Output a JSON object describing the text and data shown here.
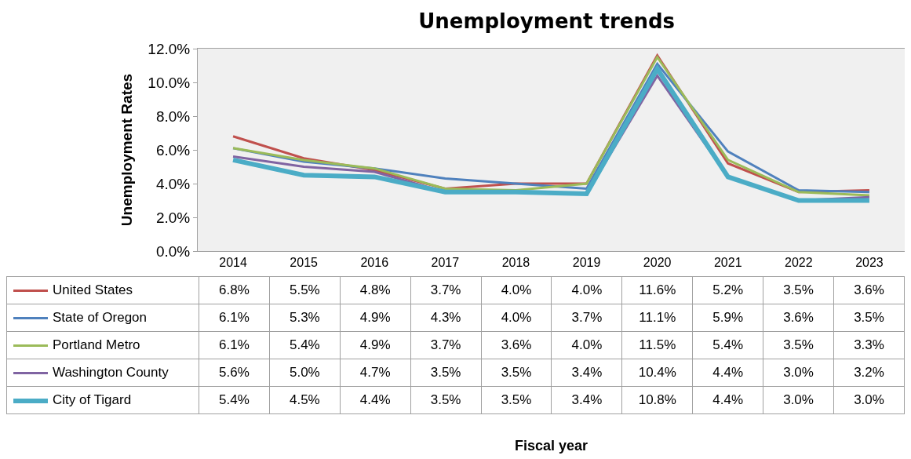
{
  "chart_data": {
    "type": "line",
    "title": "Unemployment trends",
    "annotations": [
      "Fiscal year"
    ],
    "ylabel": "Unemployment Rates",
    "categories": [
      "2014",
      "2015",
      "2016",
      "2017",
      "2018",
      "2019",
      "2020",
      "2021",
      "2022",
      "2023"
    ],
    "series": [
      {
        "name": "United States",
        "color": "#c0504d",
        "values": [
          6.8,
          5.5,
          4.8,
          3.7,
          4.0,
          4.0,
          11.6,
          5.2,
          3.5,
          3.6
        ],
        "value_labels": [
          "6.8%",
          "5.5%",
          "4.8%",
          "3.7%",
          "4.0%",
          "4.0%",
          "11.6%",
          "5.2%",
          "3.5%",
          "3.6%"
        ]
      },
      {
        "name": "State of Oregon",
        "color": "#4f81bd",
        "values": [
          6.1,
          5.3,
          4.9,
          4.3,
          4.0,
          3.7,
          11.1,
          5.9,
          3.6,
          3.5
        ],
        "value_labels": [
          "6.1%",
          "5.3%",
          "4.9%",
          "4.3%",
          "4.0%",
          "3.7%",
          "11.1%",
          "5.9%",
          "3.6%",
          "3.5%"
        ]
      },
      {
        "name": "Portland Metro",
        "color": "#9bbb59",
        "values": [
          6.1,
          5.4,
          4.9,
          3.7,
          3.6,
          4.0,
          11.5,
          5.4,
          3.5,
          3.3
        ],
        "value_labels": [
          "6.1%",
          "5.4%",
          "4.9%",
          "3.7%",
          "3.6%",
          "4.0%",
          "11.5%",
          "5.4%",
          "3.5%",
          "3.3%"
        ]
      },
      {
        "name": "Washington County",
        "color": "#8064a2",
        "values": [
          5.6,
          5.0,
          4.7,
          3.5,
          3.5,
          3.4,
          10.4,
          4.4,
          3.0,
          3.2
        ],
        "value_labels": [
          "5.6%",
          "5.0%",
          "4.7%",
          "3.5%",
          "3.5%",
          "3.4%",
          "10.4%",
          "4.4%",
          "3.0%",
          "3.2%"
        ]
      },
      {
        "name": "City of Tigard",
        "color": "#4bacc6",
        "values": [
          5.4,
          4.5,
          4.4,
          3.5,
          3.5,
          3.4,
          10.8,
          4.4,
          3.0,
          3.0
        ],
        "value_labels": [
          "5.4%",
          "4.5%",
          "4.4%",
          "3.5%",
          "3.5%",
          "3.4%",
          "10.8%",
          "4.4%",
          "3.0%",
          "3.0%"
        ]
      }
    ],
    "ylim": [
      0,
      12
    ],
    "yticks": [
      {
        "value": 0,
        "label": "0.0%"
      },
      {
        "value": 2,
        "label": "2.0%"
      },
      {
        "value": 4,
        "label": "4.0%"
      },
      {
        "value": 6,
        "label": "6.0%"
      },
      {
        "value": 8,
        "label": "8.0%"
      },
      {
        "value": 10,
        "label": "10.0%"
      },
      {
        "value": 12,
        "label": "12.0%"
      }
    ],
    "grid": false,
    "legend": "bottom",
    "marker": "none",
    "line_style": "solid"
  }
}
